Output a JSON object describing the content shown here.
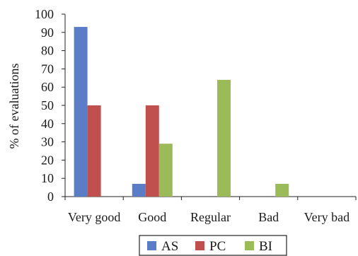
{
  "chart_data": {
    "type": "bar",
    "categories": [
      "Very good",
      "Good",
      "Regular",
      "Bad",
      "Very bad"
    ],
    "series": [
      {
        "name": "AS",
        "values": [
          93,
          7,
          0,
          0,
          0
        ],
        "color": "#5b7dc7"
      },
      {
        "name": "PC",
        "values": [
          50,
          50,
          0,
          0,
          0
        ],
        "color": "#c0504d"
      },
      {
        "name": "BI",
        "values": [
          0,
          29,
          64,
          7,
          0
        ],
        "color": "#9bbb59"
      }
    ],
    "title": "",
    "xlabel": "",
    "ylabel": "% of evaluations",
    "ylim": [
      0,
      100
    ],
    "yticks": [
      0,
      10,
      20,
      30,
      40,
      50,
      60,
      70,
      80,
      90,
      100
    ],
    "grid": false,
    "legend": "bottom"
  }
}
